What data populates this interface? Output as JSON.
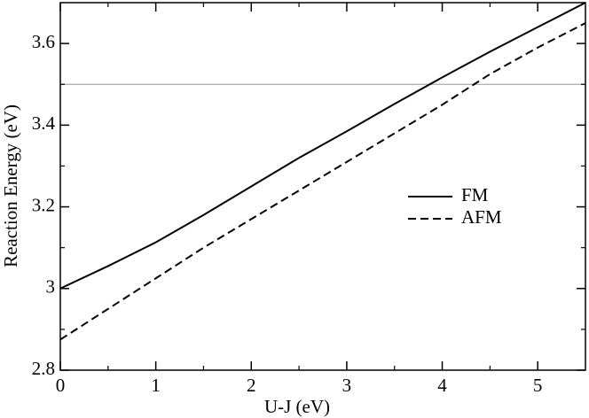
{
  "chart_data": {
    "type": "line",
    "x_label": "U-J (eV)",
    "y_label": "Reaction Energy (eV)",
    "x": [
      0,
      0.5,
      1,
      1.5,
      2,
      2.5,
      3,
      3.5,
      4,
      4.5,
      5,
      5.5
    ],
    "series": [
      {
        "name": "FM",
        "color": "#000000",
        "dash": "solid",
        "values": [
          3.0,
          3.055,
          3.113,
          3.18,
          3.25,
          3.32,
          3.385,
          3.452,
          3.517,
          3.58,
          3.64,
          3.7
        ]
      },
      {
        "name": "AFM",
        "color": "#000000",
        "dash": "dashed",
        "values": [
          2.875,
          2.95,
          3.025,
          3.1,
          3.17,
          3.24,
          3.31,
          3.38,
          3.45,
          3.525,
          3.59,
          3.65
        ]
      }
    ],
    "reference_line": {
      "y": 3.5,
      "color": "#aaaaaa"
    },
    "xlim": [
      0,
      5.5
    ],
    "xticks": [
      0,
      1,
      2,
      3,
      4,
      5
    ],
    "ylim": [
      2.8,
      3.7
    ],
    "yticks": [
      2.8,
      3,
      3.2,
      3.4,
      3.6
    ],
    "legend": "center-right"
  }
}
